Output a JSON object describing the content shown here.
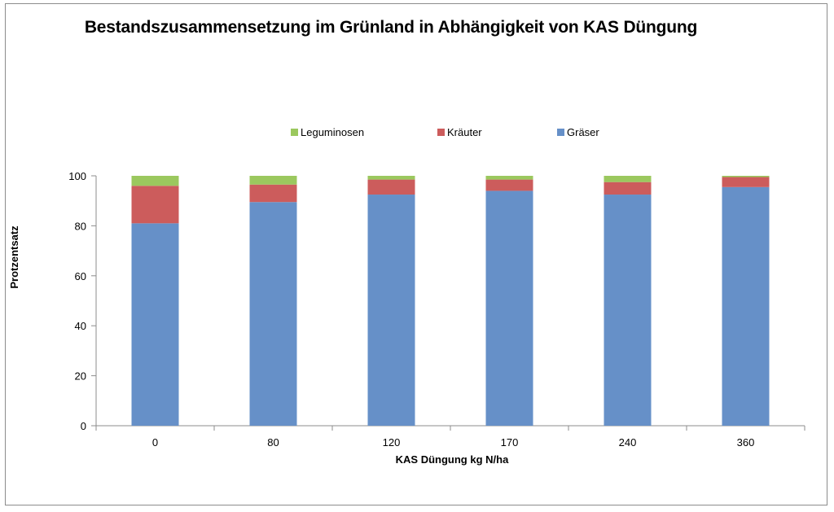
{
  "chart_data": {
    "type": "bar",
    "stacked": true,
    "title": "Bestandszusammensetzung im Grünland in Abhängigkeit von KAS Düngung",
    "xlabel": "KAS Düngung kg N/ha",
    "ylabel": "Protzentsatz",
    "categories": [
      "0",
      "80",
      "120",
      "170",
      "240",
      "360"
    ],
    "ylim": [
      0,
      100
    ],
    "yticks": [
      0,
      20,
      40,
      60,
      80,
      100
    ],
    "legend_position": "top",
    "series": [
      {
        "name": "Gräser",
        "color": "#6690c8",
        "values": [
          81,
          89.5,
          92.5,
          94,
          92.5,
          95.5
        ]
      },
      {
        "name": "Kräuter",
        "color": "#cc5c5c",
        "values": [
          15,
          7,
          6,
          4.5,
          5,
          4
        ]
      },
      {
        "name": "Leguminosen",
        "color": "#9bc85e",
        "values": [
          4,
          3.5,
          1.5,
          1.5,
          2.5,
          0.5
        ]
      }
    ],
    "legend_order": [
      "Leguminosen",
      "Kräuter",
      "Gräser"
    ]
  }
}
